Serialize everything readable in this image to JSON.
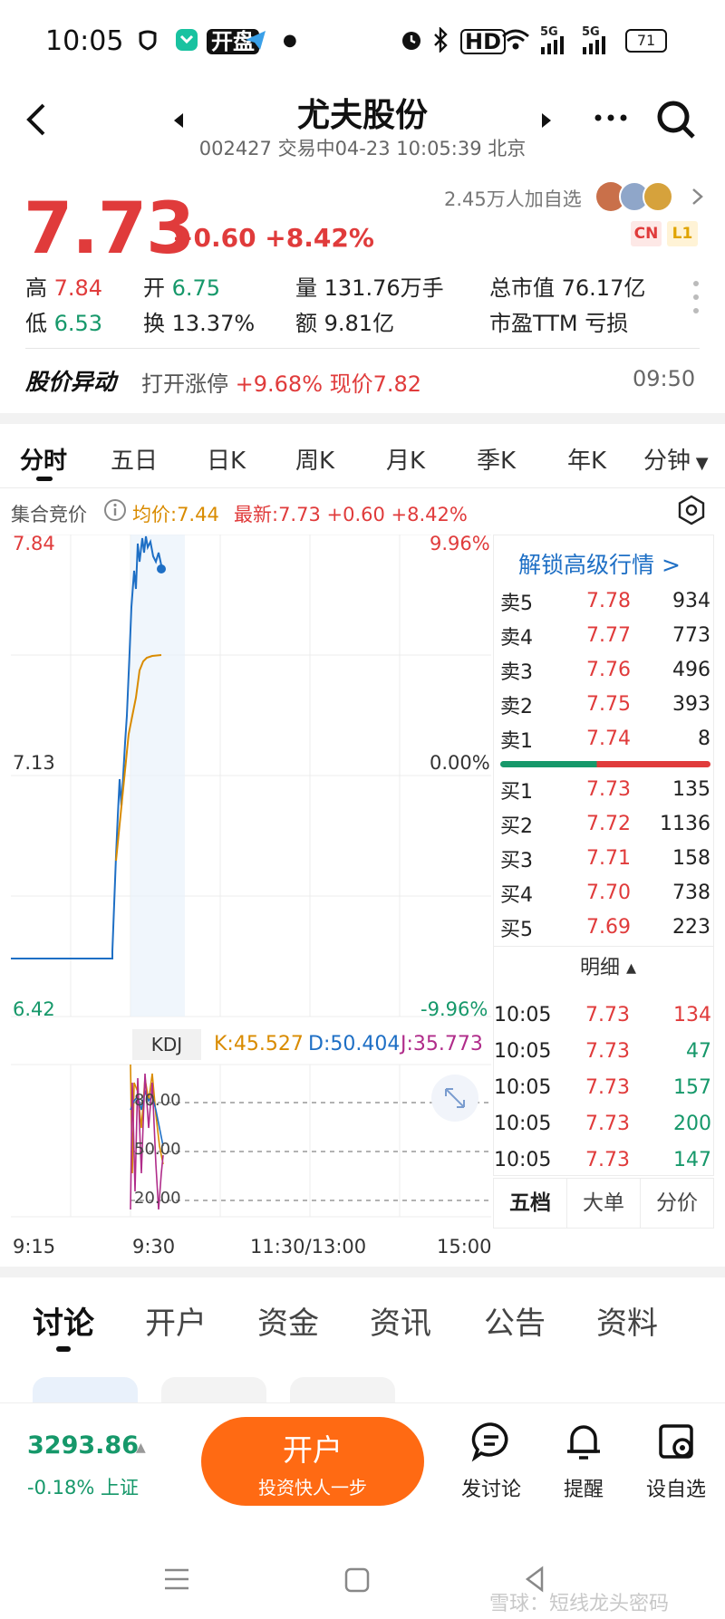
{
  "status_bar": {
    "time": "10:05",
    "battery": "71",
    "network_a": "5G",
    "network_b": "5G",
    "hd_badge": "HD",
    "app_badge": "开盘"
  },
  "header": {
    "title": "尤夫股份",
    "subtitle": "002427 交易中04-23 10:05:39 北京"
  },
  "quote": {
    "price": "7.73",
    "change": "+0.60 +8.42%",
    "watchers": "2.45万人加自选",
    "badge_cn": "CN",
    "badge_l1": "L1",
    "high_label": "高",
    "high": "7.84",
    "low_label": "低",
    "low": "6.53",
    "open_label": "开",
    "open": "6.75",
    "turnover_label": "换",
    "turnover": "13.37%",
    "volume_label": "量",
    "volume": "131.76万手",
    "amount_label": "额",
    "amount": "9.81亿",
    "mktcap_label": "总市值",
    "mktcap": "76.17亿",
    "pe_label": "市盈TTM",
    "pe": "亏损"
  },
  "alert": {
    "title": "股价异动",
    "text_a": "打开涨停 ",
    "text_b": "+9.68% 现价7.82",
    "time": "09:50"
  },
  "tabs": [
    {
      "label": "分时"
    },
    {
      "label": "五日"
    },
    {
      "label": "日K"
    },
    {
      "label": "周K"
    },
    {
      "label": "月K"
    },
    {
      "label": "季K"
    },
    {
      "label": "年K"
    },
    {
      "label": "分钟"
    }
  ],
  "chart_header": {
    "auction": "集合竞价",
    "avg": "均价:7.44",
    "latest": "最新:7.73 +0.60 +8.42%"
  },
  "chart_labels": {
    "y_top": "7.84",
    "y_mid": "7.13",
    "y_bottom": "6.42",
    "pct_top": "9.96%",
    "pct_mid": "0.00%",
    "pct_bottom": "-9.96%"
  },
  "kdj": {
    "name": "KDJ",
    "k": "K:45.527",
    "d": "D:50.404",
    "j": "J:35.773",
    "lv80": "80.00",
    "lv50": "50.00",
    "lv20": "20.00"
  },
  "x_axis": {
    "t1": "9:15",
    "t2": "9:30",
    "t3": "11:30/13:00",
    "t4": "15:00"
  },
  "orderbook": {
    "unlock": "解锁高级行情 >",
    "asks": [
      {
        "label": "卖5",
        "price": "7.78",
        "vol": "934"
      },
      {
        "label": "卖4",
        "price": "7.77",
        "vol": "773"
      },
      {
        "label": "卖3",
        "price": "7.76",
        "vol": "496"
      },
      {
        "label": "卖2",
        "price": "7.75",
        "vol": "393"
      },
      {
        "label": "卖1",
        "price": "7.74",
        "vol": "8"
      }
    ],
    "bids": [
      {
        "label": "买1",
        "price": "7.73",
        "vol": "135"
      },
      {
        "label": "买2",
        "price": "7.72",
        "vol": "1136"
      },
      {
        "label": "买3",
        "price": "7.71",
        "vol": "158"
      },
      {
        "label": "买4",
        "price": "7.70",
        "vol": "738"
      },
      {
        "label": "买5",
        "price": "7.69",
        "vol": "223"
      }
    ],
    "detail_label": "明细 ▴",
    "ticks": [
      {
        "time": "10:05",
        "price": "7.73",
        "vol": "134",
        "color": "#e03b3b"
      },
      {
        "time": "10:05",
        "price": "7.73",
        "vol": "47",
        "color": "#16986a"
      },
      {
        "time": "10:05",
        "price": "7.73",
        "vol": "157",
        "color": "#16986a"
      },
      {
        "time": "10:05",
        "price": "7.73",
        "vol": "200",
        "color": "#16986a"
      },
      {
        "time": "10:05",
        "price": "7.73",
        "vol": "147",
        "color": "#16986a"
      }
    ],
    "subtabs": [
      {
        "label": "五档"
      },
      {
        "label": "大单"
      },
      {
        "label": "分价"
      }
    ]
  },
  "bottom_tabs": [
    {
      "label": "讨论"
    },
    {
      "label": "开户"
    },
    {
      "label": "资金"
    },
    {
      "label": "资讯"
    },
    {
      "label": "公告"
    },
    {
      "label": "资料"
    }
  ],
  "index": {
    "value": "3293.86",
    "change": "-0.18% 上证"
  },
  "cta": {
    "title": "开户",
    "subtitle": "投资快人一步"
  },
  "actions": [
    {
      "label": "发讨论",
      "icon": "comment-icon"
    },
    {
      "label": "提醒",
      "icon": "bell-icon"
    },
    {
      "label": "设自选",
      "icon": "add-watchlist-icon"
    }
  ],
  "watermark": "雪球：短线龙头密码",
  "colors": {
    "up": "#e03b3b",
    "down": "#16986a",
    "accent": "#ff6a13",
    "price_line": "#1e6fc5",
    "avg_line": "#d98b00"
  }
}
